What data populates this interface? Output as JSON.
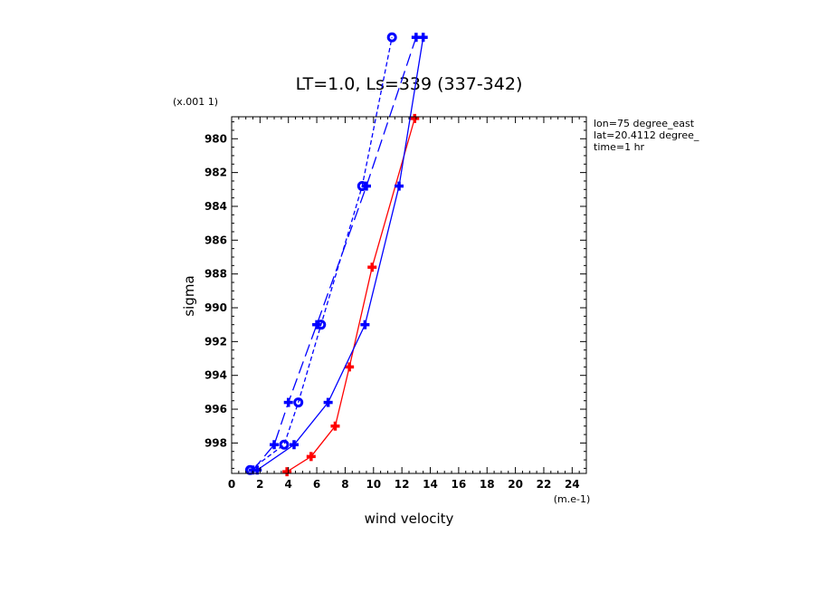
{
  "chart_data": {
    "type": "line",
    "title": "LT=1.0, Ls=339 (337-342)",
    "xlabel": "wind velocity",
    "ylabel": "sigma",
    "x_unit": "(m.e-1)",
    "y_unit": "(x.001 1)",
    "xlim": [
      0,
      25
    ],
    "ylim": [
      999.8,
      978.7
    ],
    "x_ticks": [
      "0",
      "2",
      "4",
      "6",
      "8",
      "10",
      "12",
      "14",
      "16",
      "18",
      "20",
      "22",
      "24"
    ],
    "y_ticks": [
      "980",
      "982",
      "984",
      "986",
      "988",
      "990",
      "992",
      "994",
      "996",
      "998"
    ],
    "annotations": [
      "lon=75 degree_east",
      "lat=20.4112 degree_",
      "time=1 hr"
    ],
    "series": [
      {
        "color": "#ff0000",
        "dash": "solid",
        "marker": "cross",
        "points": [
          [
            3.9,
            999.7
          ],
          [
            5.6,
            998.8
          ],
          [
            7.3,
            997.0
          ],
          [
            8.3,
            993.5
          ],
          [
            9.9,
            987.6
          ],
          [
            12.9,
            978.8
          ]
        ]
      },
      {
        "color": "#0000ff",
        "dash": "solid",
        "marker": "cross",
        "points": [
          [
            1.8,
            999.6
          ],
          [
            4.4,
            998.1
          ],
          [
            6.8,
            995.6
          ],
          [
            9.4,
            991.0
          ],
          [
            11.8,
            982.8
          ],
          [
            13.5,
            974.0
          ]
        ]
      },
      {
        "color": "#0000ff",
        "dash": "long",
        "marker": "cross",
        "points": [
          [
            1.5,
            999.6
          ],
          [
            3.0,
            998.1
          ],
          [
            4.0,
            995.6
          ],
          [
            6.0,
            991.0
          ],
          [
            9.5,
            982.8
          ],
          [
            13.0,
            974.0
          ]
        ]
      },
      {
        "color": "#0000ff",
        "dash": "short",
        "marker": "circle",
        "points": [
          [
            1.3,
            999.6
          ],
          [
            3.7,
            998.1
          ],
          [
            4.7,
            995.6
          ],
          [
            6.3,
            991.0
          ],
          [
            9.2,
            982.8
          ],
          [
            11.3,
            974.0
          ]
        ]
      }
    ]
  }
}
